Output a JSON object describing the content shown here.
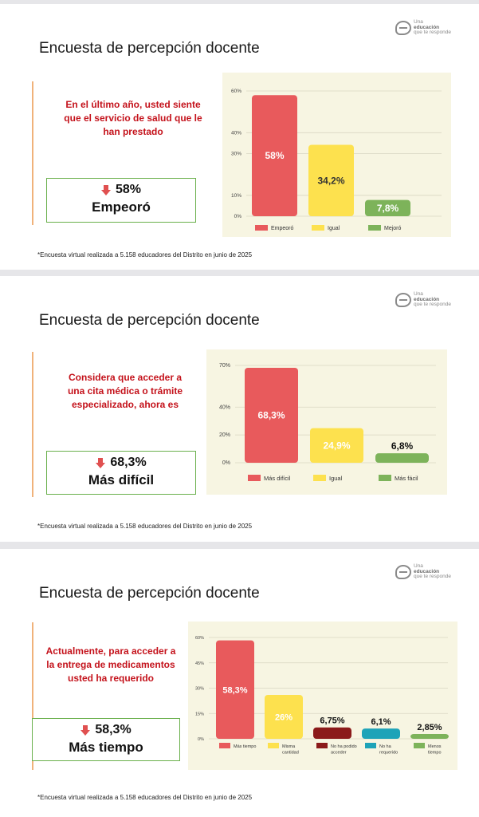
{
  "footnote": "*Encuesta virtual realizada a 5.158 educadores del Distrito en junio de 2025",
  "logo": {
    "line1": "Una",
    "line2": "educación",
    "line3": "que te responde",
    "icon": "logo-e-icon"
  },
  "colors": {
    "red": "#e85a5c",
    "yellow": "#fde14e",
    "green": "#7db35a",
    "darkred": "#8b1a1a",
    "teal": "#1ea3b8",
    "accent": "#c4121b"
  },
  "slides": [
    {
      "title": "Encuesta de percepción docente",
      "question": "En el último año, usted siente que el servicio de salud que le han prestado",
      "result_pct": "58%",
      "result_label": "Empeoró",
      "chart_data": {
        "type": "bar",
        "yticks": [
          "60%",
          "40%",
          "30%",
          "10%",
          "0%"
        ],
        "ylim": [
          0,
          60
        ],
        "categories": [
          "Empeoró",
          "Igual",
          "Mejoró"
        ],
        "values": [
          58,
          34.2,
          7.8
        ],
        "data_labels": [
          "58%",
          "34,2%",
          "7,8%"
        ],
        "label_colors": [
          "#ffffff",
          "#333333",
          "#ffffff"
        ],
        "colors": [
          "#e85a5c",
          "#fde14e",
          "#7db35a"
        ]
      }
    },
    {
      "title": "Encuesta de percepción docente",
      "question": "Considera que acceder a una cita médica o trámite especializado, ahora es",
      "result_pct": "68,3%",
      "result_label": "Más difícil",
      "chart_data": {
        "type": "bar",
        "yticks": [
          "70%",
          "40%",
          "20%",
          "0%"
        ],
        "ylim": [
          0,
          70
        ],
        "categories": [
          "Más difícil",
          "Igual",
          "Más fácil"
        ],
        "values": [
          68.3,
          24.9,
          6.8
        ],
        "data_labels": [
          "68,3%",
          "24,9%",
          "6,8%"
        ],
        "label_colors": [
          "#ffffff",
          "#ffffff",
          "#111111"
        ],
        "colors": [
          "#e85a5c",
          "#fde14e",
          "#7db35a"
        ]
      }
    },
    {
      "title": "Encuesta de percepción docente",
      "question": "Actualmente, para acceder a la entrega de medicamentos usted ha requerido",
      "result_pct": "58,3%",
      "result_label": "Más tiempo",
      "chart_data": {
        "type": "bar",
        "yticks": [
          "60%",
          "45%",
          "30%",
          "15%",
          "0%"
        ],
        "ylim": [
          0,
          60
        ],
        "categories": [
          "Más tiempo",
          "Misma cantidad",
          "No ha podido acceder",
          "No ha requerido",
          "Menos tiempo"
        ],
        "legend_lines": [
          [
            "Más tiempo"
          ],
          [
            "Misma",
            "cantidad"
          ],
          [
            "No ha podido",
            "acceder"
          ],
          [
            "No ha",
            "requerido"
          ],
          [
            "Menos",
            "tiempo"
          ]
        ],
        "values": [
          58.3,
          26,
          6.75,
          6.1,
          2.85
        ],
        "data_labels": [
          "58,3%",
          "26%",
          "6,75%",
          "6,1%",
          "2,85%"
        ],
        "label_colors": [
          "#ffffff",
          "#ffffff",
          "#111111",
          "#111111",
          "#111111"
        ],
        "colors": [
          "#e85a5c",
          "#fde14e",
          "#8b1a1a",
          "#1ea3b8",
          "#7db35a"
        ]
      }
    }
  ]
}
